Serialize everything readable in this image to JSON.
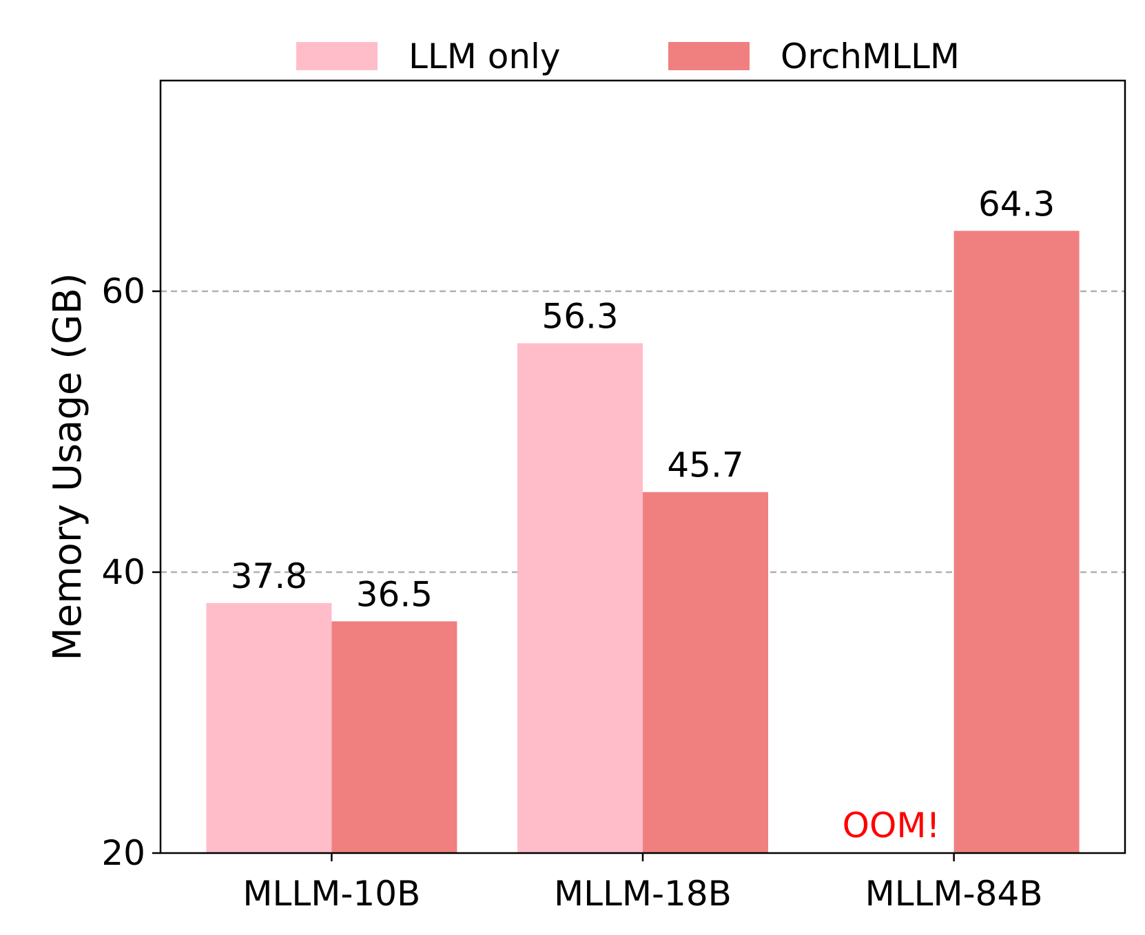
{
  "chart_data": {
    "type": "bar",
    "title": "",
    "xlabel": "",
    "ylabel": "Memory Usage (GB)",
    "ylim": [
      20,
      75
    ],
    "yticks": [
      20,
      40,
      60
    ],
    "grid": "y-dashed",
    "legend_position": "top-center",
    "categories": [
      "MLLM-10B",
      "MLLM-18B",
      "MLLM-84B"
    ],
    "series": [
      {
        "name": "LLM only",
        "color": "#ffbdca",
        "values": [
          37.8,
          56.3,
          null
        ]
      },
      {
        "name": "OrchMLLM",
        "color": "#f08080",
        "values": [
          36.5,
          45.7,
          64.3
        ]
      }
    ],
    "annotations": [
      {
        "text": "OOM!",
        "category": "MLLM-84B",
        "series": "LLM only",
        "color": "#ff0000"
      }
    ]
  }
}
